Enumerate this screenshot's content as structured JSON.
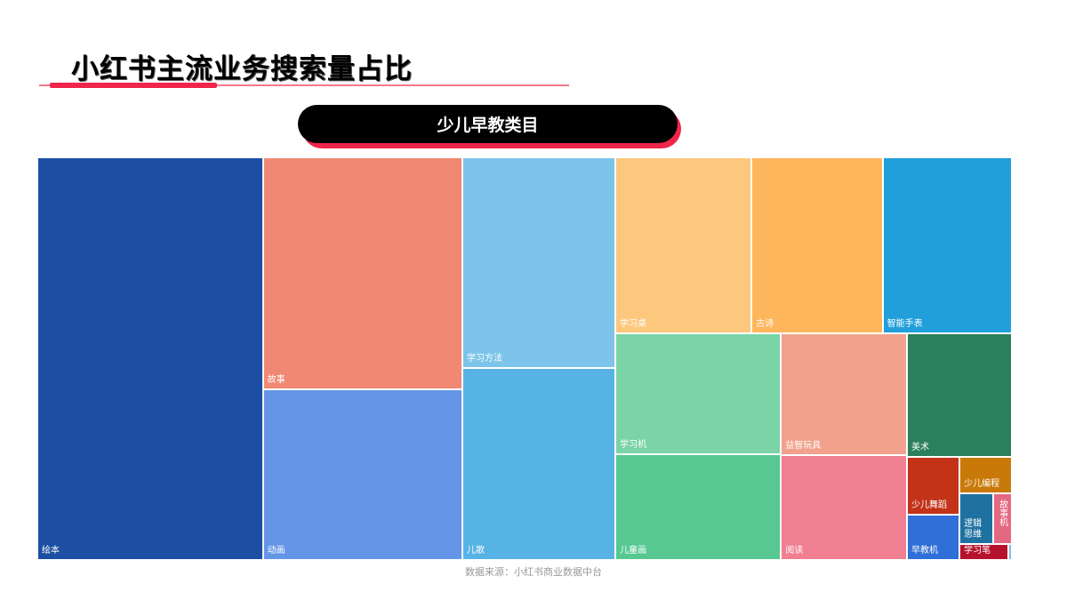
{
  "header": {
    "title": "小红书主流业务搜索量占比",
    "category_label": "少儿早教类目"
  },
  "footer": {
    "source": "数据来源：小红书商业数据中台"
  },
  "chart_data": {
    "type": "treemap",
    "title": "少儿早教类目",
    "categories": [
      "绘本",
      "故事",
      "动画",
      "学习方法",
      "儿歌",
      "学习桌",
      "古诗",
      "智能手表",
      "学习机",
      "儿童画",
      "益智玩具",
      "阅读",
      "美术",
      "少儿舞蹈",
      "早教机",
      "少儿编程",
      "逻辑思维",
      "故事机",
      "学习笔",
      ""
    ],
    "values": [
      113.9,
      58.0,
      42.8,
      40.5,
      36.8,
      30.1,
      29.0,
      28.6,
      25.0,
      22.0,
      19.2,
      16.6,
      16.2,
      3.8,
      3.0,
      2.4,
      2.1,
      1.2,
      1.0,
      0.08
    ],
    "colors": [
      "#1c4fa3",
      "#f08873",
      "#6495e6",
      "#7dc4ea",
      "#57b3e6",
      "#fdc77d",
      "#feb65c",
      "#219fda",
      "#7ad4a7",
      "#57c891",
      "#f2a28c",
      "#ef7f91",
      "#2a805a",
      "#c23318",
      "#2f6fd8",
      "#c97908",
      "#1f72a0",
      "#e56882",
      "#b5132c",
      "#8ab8e6"
    ]
  }
}
